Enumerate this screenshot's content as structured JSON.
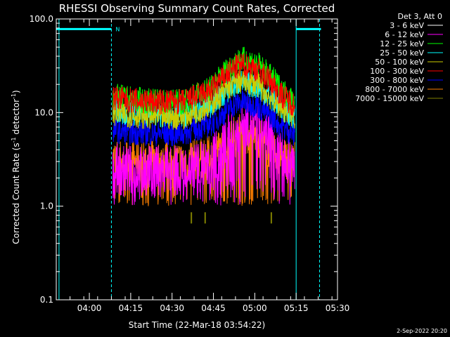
{
  "chart_data": {
    "type": "line",
    "title": "RHESSI Observing Summary Count Rates, Corrected",
    "xlabel": "Start Time (22-Mar-18 03:54:22)",
    "ylabel_prefix": "Corrected Count Rate (s",
    "ylabel_sup1": "-1",
    "ylabel_mid": " detector",
    "ylabel_sup2": "-1",
    "ylabel_suffix": ")",
    "y_scale": "log",
    "ylim": [
      0.1,
      100
    ],
    "xlim_minutes": [
      -6,
      96
    ],
    "y_ticks": [
      {
        "value": 0.1,
        "label": "0.1"
      },
      {
        "value": 1,
        "label": "1.0"
      },
      {
        "value": 10,
        "label": "10.0"
      },
      {
        "value": 100,
        "label": "100.0"
      }
    ],
    "x_ticks": [
      {
        "value": 6,
        "label": "04:00"
      },
      {
        "value": 21,
        "label": "04:15"
      },
      {
        "value": 36,
        "label": "04:30"
      },
      {
        "value": 51,
        "label": "04:45"
      },
      {
        "value": 66,
        "label": "05:00"
      },
      {
        "value": 81,
        "label": "05:15"
      },
      {
        "value": 96,
        "label": "05:30"
      }
    ],
    "legend_header": "Det 3, Att 0",
    "legend_placement": "right",
    "series": [
      {
        "name": "3 - 6 keV",
        "color": "#ffffff",
        "x": [
          14.5,
          20,
          30,
          40,
          50,
          55,
          58,
          61,
          64,
          67,
          70,
          76,
          80.5
        ],
        "y": null
      },
      {
        "name": "6 - 12 keV",
        "color": "#ff00ff",
        "x": [
          14.5,
          20,
          30,
          40,
          50,
          55,
          58,
          61,
          64,
          67,
          70,
          76,
          80.5
        ],
        "y": [
          2.5,
          2.4,
          2.4,
          2.4,
          3.0,
          4.5,
          6.0,
          7.5,
          8.0,
          7.5,
          6.0,
          4.0,
          3.0
        ]
      },
      {
        "name": "12 - 25 keV",
        "color": "#00ff00",
        "x": [
          14.5,
          20,
          30,
          40,
          50,
          55,
          58,
          61,
          64,
          67,
          70,
          76,
          80.5
        ],
        "y": [
          15,
          14,
          13,
          13,
          18,
          27,
          33,
          37,
          36,
          33,
          27,
          17,
          13
        ]
      },
      {
        "name": "25 - 50 keV",
        "color": "#00ffff",
        "x": [
          14.5,
          20,
          30,
          40,
          50,
          55,
          58,
          61,
          64,
          67,
          70,
          76,
          80.5
        ],
        "y": [
          11,
          10,
          9.5,
          9.5,
          12,
          16,
          19,
          21,
          20,
          19,
          16,
          11,
          9
        ]
      },
      {
        "name": "50 - 100 keV",
        "color": "#cccc00",
        "x": [
          14.5,
          20,
          30,
          40,
          50,
          55,
          58,
          61,
          64,
          67,
          70,
          76,
          80.5
        ],
        "y": [
          10,
          9.5,
          9,
          9,
          12,
          17,
          20,
          22,
          21,
          20,
          16,
          11,
          9
        ]
      },
      {
        "name": "100 - 300 keV",
        "color": "#ff0000",
        "x": [
          14.5,
          20,
          30,
          40,
          50,
          55,
          58,
          61,
          64,
          67,
          70,
          76,
          80.5
        ],
        "y": [
          14.5,
          13.5,
          13,
          13,
          17,
          24,
          29,
          32,
          31,
          29,
          24,
          15,
          12
        ]
      },
      {
        "name": "300 - 800 keV",
        "color": "#0000ff",
        "x": [
          14.5,
          20,
          30,
          40,
          50,
          55,
          58,
          61,
          64,
          67,
          70,
          76,
          80.5
        ],
        "y": [
          6.5,
          6.2,
          6,
          6,
          7.5,
          10,
          12,
          13,
          12.5,
          12,
          10,
          7,
          5.8
        ]
      },
      {
        "name": "800 - 7000 keV",
        "color": "#ff8000",
        "x": [
          14.5,
          20,
          30,
          40,
          50,
          55,
          58,
          61,
          64,
          67,
          70,
          76,
          80.5
        ],
        "y": [
          3.2,
          3.1,
          3.0,
          3.0,
          3.4,
          4.4,
          5.5,
          6.0,
          5.8,
          5.5,
          4.4,
          3.3,
          3.0
        ]
      },
      {
        "name": "7000 - 15000 keV",
        "color": "#808000",
        "x": [
          43,
          48,
          72
        ],
        "y": [
          0.75,
          0.75,
          0.75
        ]
      }
    ],
    "flags": [
      {
        "label": "N",
        "color": "#00ffff",
        "x_start": -6,
        "x_end": 14,
        "y": 78,
        "dashed_lines": [
          14,
          89.5
        ]
      },
      {
        "label": "",
        "color": "#00ffff",
        "x_start": 81,
        "x_end": 90,
        "y": 78,
        "solid_lines": [
          -5,
          81
        ]
      }
    ],
    "grid": false
  },
  "footer": {
    "date_stamp": "2-Sep-2022 20:20"
  }
}
